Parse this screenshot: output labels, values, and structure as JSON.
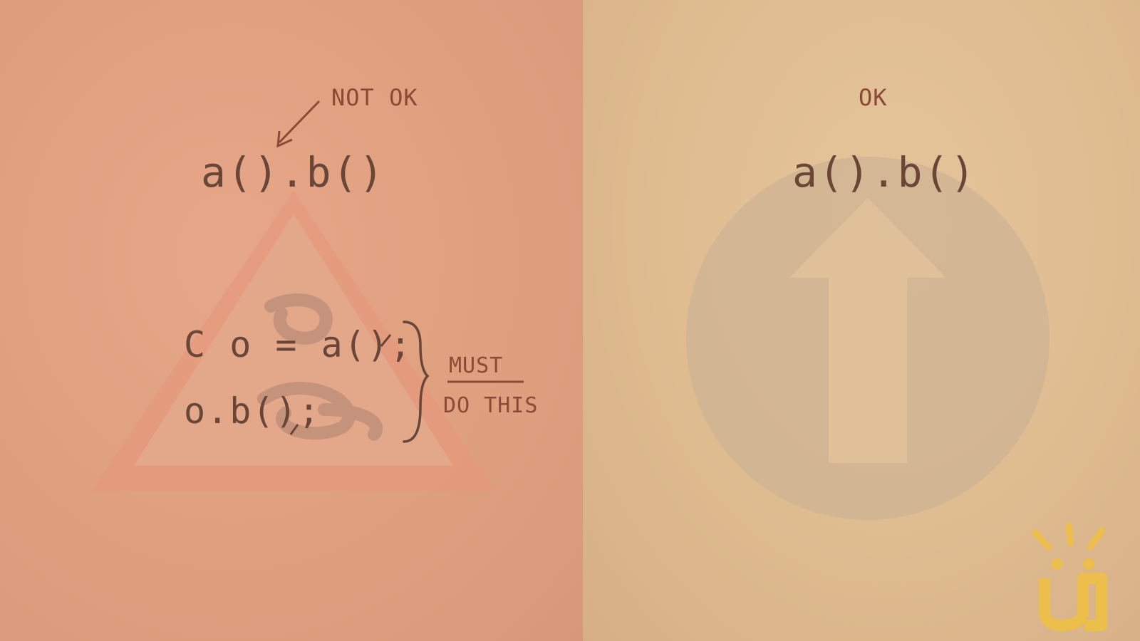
{
  "left_panel": {
    "annotation": "NOT OK",
    "expression": "a().b()",
    "code_lines": [
      "C o = a();",
      "o.b();"
    ],
    "brace_note": {
      "line1": "MUST",
      "line2": "DO THIS"
    },
    "background_icon": "warning-triangle-icon"
  },
  "right_panel": {
    "annotation": "OK",
    "expression": "a().b()",
    "background_icon": "arrow-up-circle-icon"
  },
  "colors": {
    "left_bg": "#e0a283",
    "right_bg": "#dfbb90",
    "ink": "#6a4638",
    "accent_ink": "#8a4a35",
    "logo": "#f0c040"
  },
  "logo": {
    "icon": "logo-icon",
    "glyph": "ü"
  }
}
